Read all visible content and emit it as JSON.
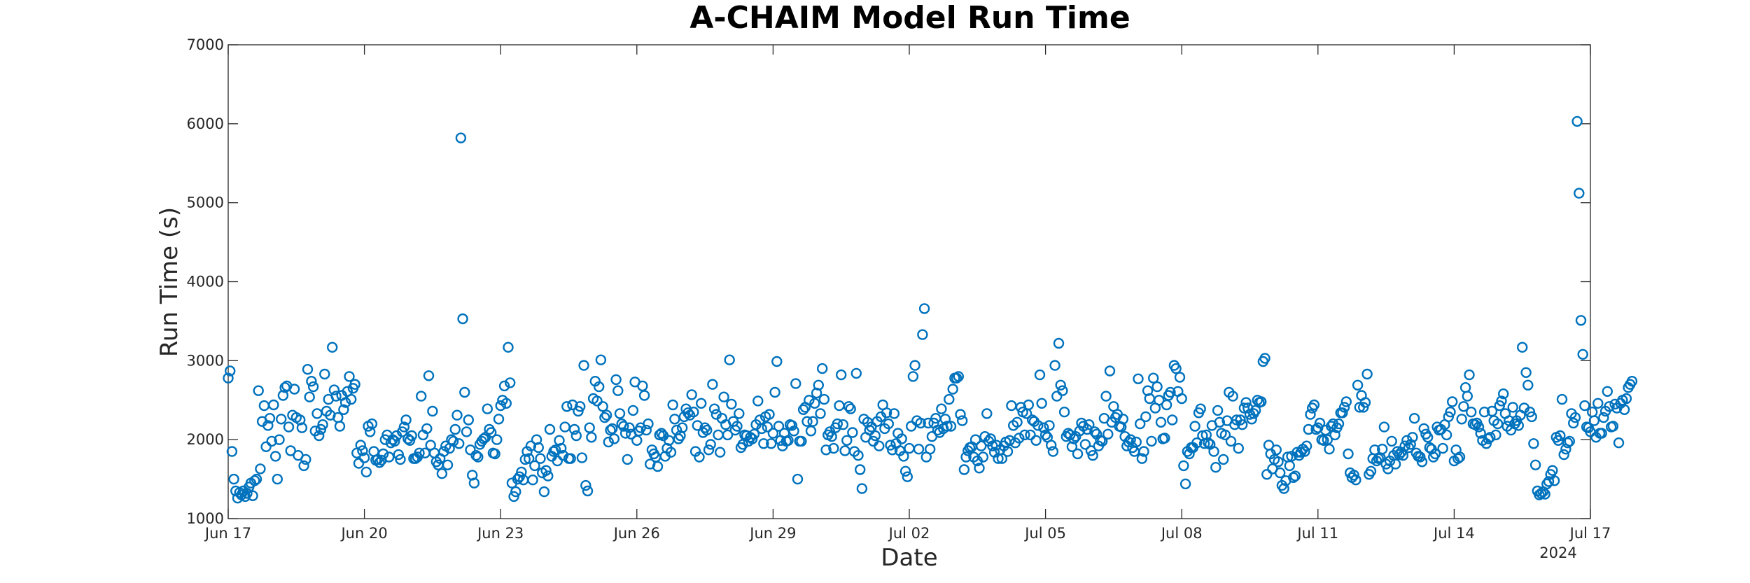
{
  "chart_data": {
    "type": "scatter",
    "title": "A-CHAIM Model Run Time",
    "xlabel": "Date",
    "ylabel": "Run Time (s)",
    "x_year_label": "2024",
    "ylim": [
      1000,
      7000
    ],
    "xlim": [
      "2024-06-17",
      "2024-07-17"
    ],
    "yticks": [
      "1000",
      "2000",
      "3000",
      "4000",
      "5000",
      "6000",
      "7000"
    ],
    "xticks": [
      "Jun 17",
      "Jun 20",
      "Jun 23",
      "Jun 26",
      "Jun 29",
      "Jul 02",
      "Jul 05",
      "Jul 08",
      "Jul 11",
      "Jul 14",
      "Jul 17"
    ],
    "grid": false,
    "marker": "circle",
    "color": "#0072BD",
    "points_per_day": 24,
    "y": [
      2780,
      2870,
      1850,
      1500,
      1350,
      1260,
      1330,
      1300,
      1350,
      1280,
      1320,
      1400,
      1450,
      1290,
      1480,
      1500,
      2620,
      1630,
      2230,
      2430,
      1910,
      2180,
      2270,
      1980,
      2440,
      1790,
      1500,
      2000,
      2260,
      2560,
      2660,
      2680,
      2160,
      1860,
      2310,
      2640,
      2280,
      1800,
      2250,
      2150,
      1670,
      1750,
      2890,
      2540,
      2740,
      2670,
      2110,
      2330,
      2050,
      2130,
      2190,
      2830,
      2360,
      2510,
      2310,
      3170,
      2630,
      2550,
      2280,
      2170,
      2560,
      2380,
      2470,
      2610,
      2800,
      2510,
      2650,
      2700,
      1830,
      1700,
      1930,
      1860,
      1770,
      1590,
      2170,
      2100,
      2200,
      1850,
      1740,
      1750,
      1710,
      1740,
      1820,
      2000,
      2060,
      1780,
      1960,
      2000,
      1980,
      2050,
      1810,
      1750,
      2100,
      2160,
      2250,
      2010,
      1990,
      2050,
      1760,
      1760,
      1780,
      1830,
      2550,
      2060,
      1830,
      2140,
      2810,
      1930,
      2360,
      1830,
      1720,
      1680,
      1760,
      1570,
      1850,
      1920,
      1680,
      1890,
      2000,
      1980,
      2130,
      2310,
      1950,
      5820,
      3530,
      2600,
      2100,
      2250,
      1870,
      1550,
      1450,
      1800,
      1780,
      1940,
      1980,
      2010,
      2030,
      2390,
      2130,
      2090,
      1830,
      1820,
      2000,
      2260,
      2430,
      2500,
      2680,
      2460,
      3170,
      2720,
      1450,
      1280,
      1340,
      1500,
      1530,
      1590,
      1490,
      1750,
      1850,
      1760,
      1920,
      1490,
      1670,
      2000,
      1900,
      1760,
      1580,
      1340,
      1610,
      1540,
      2130,
      1790,
      1850,
      1870,
      1730,
      1990,
      1890,
      1800,
      2160,
      2420,
      1760,
      1760,
      2440,
      2130,
      2050,
      2360,
      2420,
      1770,
      2940,
      1420,
      1350,
      2150,
      2030,
      2520,
      2740,
      2490,
      2670,
      3010,
      2420,
      2280,
      2310,
      1970,
      2120,
      2140,
      2010,
      2760,
      2620,
      2330,
      2200,
      2170,
      2080,
      1750,
      2150,
      2070,
      2370,
      2730,
      1990,
      2110,
      2150,
      2680,
      2560,
      2120,
      2200,
      1690,
      1870,
      1820,
      1780,
      1660,
      2060,
      2080,
      2050,
      1790,
      1890,
      1990,
      1840,
      2440,
      2260,
      2120,
      2010,
      2050,
      2150,
      2290,
      2390,
      2340,
      2310,
      2570,
      2350,
      1850,
      2180,
      1780,
      2460,
      2090,
      2150,
      2120,
      1870,
      1940,
      2700,
      2390,
      2320,
      2060,
      1840,
      2270,
      2540,
      2190,
      2060,
      3010,
      2450,
      2230,
      2120,
      2170,
      2330,
      1900,
      1940,
      2060,
      2050,
      1980,
      2030,
      2010,
      2070,
      2190,
      2490,
      2250,
      2140,
      1950,
      2290,
      2160,
      2320,
      1950,
      2080,
      2600,
      2990,
      2170,
      1990,
      1920,
      2080,
      1980,
      1990,
      2190,
      2180,
      2110,
      2710,
      1500,
      1980,
      1980,
      2380,
      2410,
      2230,
      2500,
      2110,
      2230,
      2460,
      2590,
      2690,
      2330,
      2900,
      2510,
      1870,
      2060,
      2100,
      2040,
      1890,
      2150,
      2200,
      2430,
      2820,
      2190,
      1860,
      1990,
      2420,
      2390,
      2090,
      1850,
      2840,
      1800,
      1620,
      1380,
      2260,
      2030,
      2220,
      2120,
      2160,
      1980,
      2050,
      2230,
      1920,
      2290,
      2440,
      2140,
      2340,
      2200,
      1930,
      1870,
      2330,
      1950,
      2080,
      1860,
      2010,
      1790,
      1600,
      1530,
      1890,
      2170,
      2800,
      2940,
      2240,
      1880,
      2210,
      3330,
      3660,
      1780,
      2210,
      1880,
      2040,
      2210,
      2270,
      2120,
      2090,
      2390,
      2140,
      2260,
      2170,
      2510,
      2170,
      2640,
      2780,
      2780,
      2800,
      2320,
      2240,
      1620,
      1780,
      1860,
      1900,
      1910,
      1780,
      2000,
      1730,
      1640,
      1920,
      1780,
      2040,
      2330,
      1980,
      2010,
      1920,
      1840,
      1930,
      1760,
      1870,
      1760,
      1920,
      1970,
      1850,
      1990,
      2430,
      2180,
      1960,
      2220,
      2020,
      2410,
      2350,
      2060,
      2330,
      2440,
      2060,
      2250,
      2230,
      1990,
      2180,
      2820,
      2460,
      2150,
      2060,
      2030,
      2180,
      1930,
      1850,
      2940,
      2550,
      3220,
      2690,
      2620,
      2350,
      2040,
      2080,
      2060,
      1910,
      2010,
      2040,
      1820,
      2110,
      2210,
      2170,
      1940,
      2130,
      2190,
      1860,
      1800,
      2100,
      2070,
      1920,
      1990,
      1980,
      2270,
      2550,
      2070,
      2870,
      2220,
      2420,
      2280,
      2320,
      2170,
      2160,
      2260,
      2040,
      1920,
      1970,
      2000,
      1900,
      1850,
      1970,
      2770,
      2200,
      1760,
      1850,
      2290,
      2620,
      2520,
      1980,
      2780,
      2400,
      2670,
      2500,
      2220,
      2010,
      2020,
      2440,
      2560,
      2600,
      2250,
      2940,
      2900,
      2610,
      2790,
      2520,
      1670,
      1440,
      1850,
      1820,
      1900,
      1900,
      2170,
      1960,
      2340,
      2390,
      2050,
      1950,
      2060,
      1960,
      1940,
      2180,
      1850,
      1650,
      2370,
      2220,
      2080,
      1750,
      2060,
      2240,
      2600,
      1980,
      2550,
      2190,
      2250,
      1890,
      2250,
      2190,
      2400,
      2470,
      2400,
      2320,
      2260,
      2330,
      2370,
      2500,
      2470,
      2480,
      2990,
      3030,
      1560,
      1930,
      1820,
      1630,
      1750,
      1870,
      1720,
      1580,
      1420,
      1380,
      1480,
      1780,
      1670,
      1790,
      1520,
      1540,
      1840,
      1800,
      1840,
      1880,
      1850,
      1920,
      2130,
      2320,
      2400,
      2440,
      2130,
      2150,
      2210,
      2000,
      1990,
      2120,
      2000,
      1880,
      2170,
      2200,
      2060,
      2150,
      2200,
      2340,
      2340,
      2410,
      2480,
      1820,
      1580,
      1520,
      1550,
      1490,
      2690,
      2410,
      2560,
      2410,
      2470,
      2830,
      1560,
      1600,
      1760,
      1870,
      1730,
      1760,
      1770,
      1880,
      2160,
      1690,
      1630,
      1730,
      1980,
      1800,
      1690,
      1850,
      1810,
      1840,
      1800,
      1920,
      1990,
      1900,
      1940,
      2030,
      2270,
      1830,
      1790,
      1780,
      1720,
      2140,
      2070,
      2030,
      1900,
      1880,
      1780,
      1820,
      2160,
      2120,
      2130,
      1890,
      2190,
      2060,
      2290,
      2350,
      2480,
      1730,
      1870,
      1760,
      1780,
      2260,
      2420,
      2660,
      2550,
      2820,
      2350,
      2200,
      2190,
      2210,
      2160,
      2080,
      1990,
      2350,
      1950,
      2010,
      2030,
      2360,
      2240,
      2060,
      2200,
      2430,
      2490,
      2580,
      2330,
      2170,
      2240,
      2120,
      2410,
      2200,
      2240,
      2180,
      2310,
      3170,
      2400,
      2850,
      2690,
      2350,
      2290,
      1950,
      1680,
      1350,
      1300,
      1320,
      1340,
      1310,
      1440,
      1470,
      1560,
      1610,
      1480,
      2030,
      1990,
      2050,
      2510,
      1810,
      1880,
      1960,
      1980,
      2330,
      2210,
      2280,
      6030,
      5120,
      3510,
      3080,
      2430,
      2160,
      2150,
      2100,
      2350,
      2240,
      2030,
      2460,
      2080,
      2080,
      2280,
      2360,
      2610,
      2420,
      2160,
      2170,
      2450,
      2400,
      1960,
      2460,
      2500,
      2380,
      2520,
      2660,
      2700,
      2740
    ]
  }
}
